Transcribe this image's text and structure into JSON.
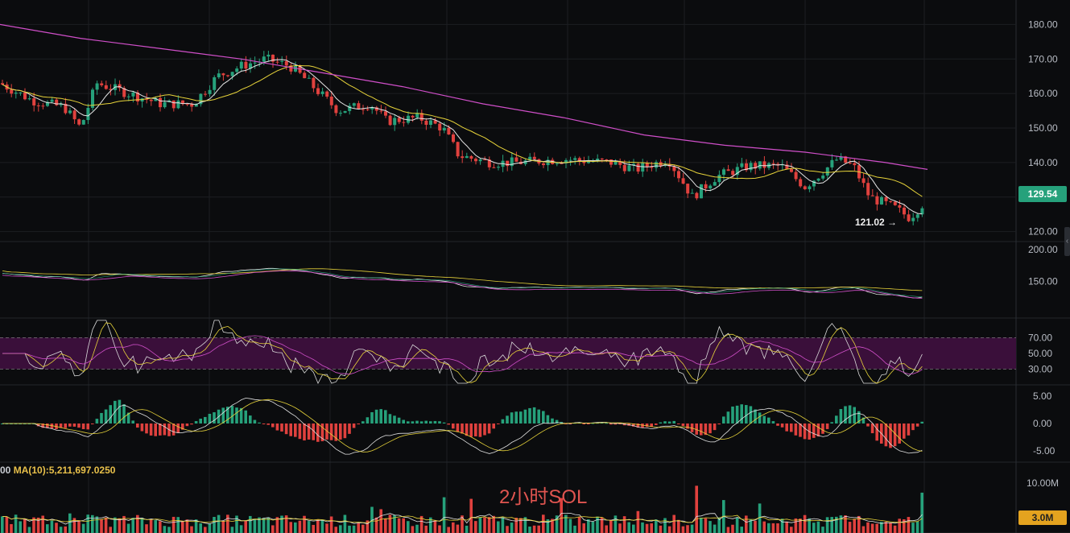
{
  "chart_data": {
    "type": "candlestick",
    "watermark": "2小时SOL",
    "panels": [
      {
        "name": "price",
        "ylim": [
          115,
          185
        ],
        "yticks": [
          "180.00",
          "170.00",
          "160.00",
          "150.00",
          "140.00",
          "130.00",
          "120.00"
        ],
        "last_price": "129.54",
        "low_marker": "121.02 →",
        "overlays": [
          "MA-short (white)",
          "MA-mid (yellow)",
          "MA-long (magenta)"
        ]
      },
      {
        "name": "secondary-ma",
        "yticks": [
          "200.00",
          "150.00"
        ]
      },
      {
        "name": "rsi",
        "yticks": [
          "70.00",
          "50.00",
          "30.00"
        ],
        "band": [
          30,
          70
        ]
      },
      {
        "name": "macd",
        "yticks": [
          "5.00",
          "0.00",
          "-5.00"
        ]
      },
      {
        "name": "volume",
        "yticks": [
          "10.00M"
        ],
        "last_volume": "3.0M",
        "legend_prefix": "00",
        "legend": "MA(10):5,211,697.0250"
      }
    ],
    "price_path": [
      [
        0,
        163
      ],
      [
        40,
        158
      ],
      [
        80,
        156
      ],
      [
        100,
        150
      ],
      [
        120,
        163
      ],
      [
        160,
        160
      ],
      [
        200,
        157
      ],
      [
        240,
        157
      ],
      [
        270,
        165
      ],
      [
        300,
        168
      ],
      [
        330,
        170
      ],
      [
        360,
        168
      ],
      [
        380,
        164
      ],
      [
        420,
        155
      ],
      [
        460,
        157
      ],
      [
        480,
        152
      ],
      [
        520,
        153
      ],
      [
        550,
        150
      ],
      [
        570,
        142
      ],
      [
        610,
        140
      ],
      [
        640,
        140
      ],
      [
        700,
        141
      ],
      [
        760,
        140
      ],
      [
        790,
        138
      ],
      [
        830,
        141
      ],
      [
        860,
        130
      ],
      [
        890,
        136
      ],
      [
        930,
        139
      ],
      [
        970,
        139
      ],
      [
        1000,
        133
      ],
      [
        1020,
        137
      ],
      [
        1040,
        141
      ],
      [
        1060,
        139
      ],
      [
        1080,
        130
      ],
      [
        1110,
        127
      ],
      [
        1130,
        124
      ],
      [
        1152,
        129.54
      ]
    ],
    "ma_long_path": [
      [
        0,
        180
      ],
      [
        100,
        176
      ],
      [
        200,
        173
      ],
      [
        300,
        170
      ],
      [
        400,
        166
      ],
      [
        500,
        162
      ],
      [
        600,
        157
      ],
      [
        700,
        153
      ],
      [
        800,
        148
      ],
      [
        900,
        145
      ],
      [
        1000,
        143
      ],
      [
        1100,
        140
      ],
      [
        1152,
        138
      ]
    ]
  },
  "colors": {
    "up": "#26a17b",
    "down": "#e0413e",
    "ma_short": "#e6e6e6",
    "ma_mid": "#e7d33a",
    "ma_long": "#d04fc9",
    "rsi_band": "#3a0f3a"
  }
}
